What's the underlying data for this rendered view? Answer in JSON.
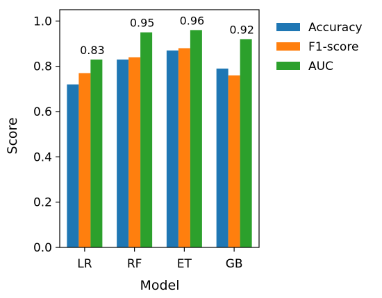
{
  "chart_data": {
    "type": "bar",
    "title": "",
    "xlabel": "Model",
    "ylabel": "Score",
    "ylim": [
      0,
      1.05
    ],
    "yticks": [
      0.0,
      0.2,
      0.4,
      0.6,
      0.8,
      1.0
    ],
    "ytick_labels": [
      "0.0",
      "0.2",
      "0.4",
      "0.6",
      "0.8",
      "1.0"
    ],
    "categories": [
      "LR",
      "RF",
      "ET",
      "GB"
    ],
    "series": [
      {
        "name": "Accuracy",
        "color": "#1f77b4",
        "values": [
          0.72,
          0.83,
          0.87,
          0.79
        ]
      },
      {
        "name": "F1-score",
        "color": "#ff7f0e",
        "values": [
          0.77,
          0.84,
          0.88,
          0.76
        ]
      },
      {
        "name": "AUC",
        "color": "#2ca02c",
        "values": [
          0.83,
          0.95,
          0.96,
          0.92
        ]
      }
    ],
    "data_labels": {
      "series": "AUC",
      "texts": [
        "0.83",
        "0.95",
        "0.96",
        "0.92"
      ]
    },
    "legend_placement": "outside-right",
    "grid": false
  }
}
